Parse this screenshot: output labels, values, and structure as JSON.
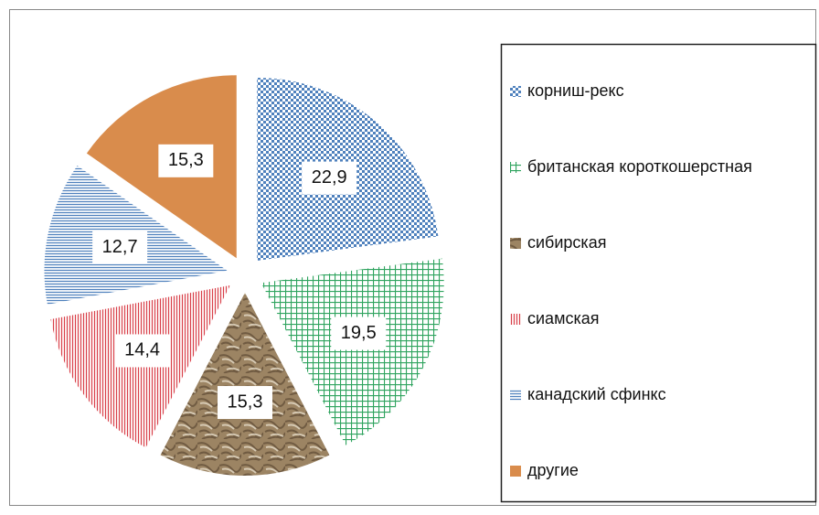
{
  "chart_data": {
    "type": "pie",
    "categories": [
      "корниш-рекс",
      "британская короткошерстная",
      "сибирская",
      "сиамская",
      "канадский сфинкс",
      "другие"
    ],
    "values": [
      22.9,
      19.5,
      15.3,
      14.4,
      12.7,
      15.3
    ],
    "value_labels": [
      "22,9",
      "19,5",
      "15,3",
      "14,4",
      "12,7",
      "15,3"
    ],
    "colors": [
      "#4f81bd",
      "#2ea35e",
      "#9c8463",
      "#d9404a",
      "#4f81bd",
      "#d98c4c"
    ],
    "legend": "right"
  }
}
